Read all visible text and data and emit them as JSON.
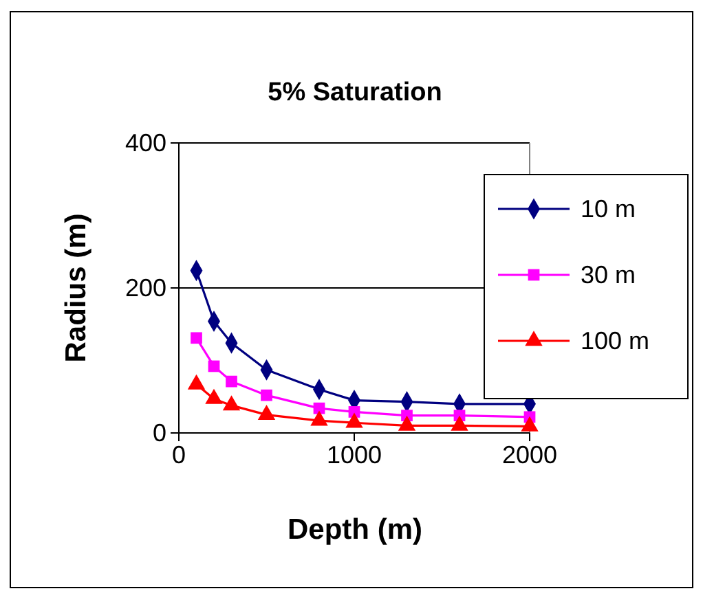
{
  "chart_data": {
    "type": "line",
    "title": "5% Saturation",
    "xlabel": "Depth (m)",
    "ylabel": "Radius (m)",
    "x": [
      100,
      200,
      300,
      500,
      800,
      1000,
      1300,
      1600,
      2000
    ],
    "xlim": [
      0,
      2000
    ],
    "xticks": [
      0,
      1000,
      2000
    ],
    "ylim": [
      0,
      400
    ],
    "yticks": [
      0,
      200,
      400
    ],
    "grid": "y",
    "legend": "right",
    "series": [
      {
        "name": "10 m",
        "color": "#000080",
        "marker": "diamond",
        "values": [
          224,
          154,
          124,
          87,
          60,
          45,
          43,
          40,
          40
        ]
      },
      {
        "name": "30 m",
        "color": "#ff00ff",
        "marker": "square",
        "values": [
          131,
          92,
          71,
          52,
          34,
          29,
          24,
          24,
          22
        ]
      },
      {
        "name": "100 m",
        "color": "#ff0000",
        "marker": "triangle",
        "values": [
          67,
          47,
          38,
          25,
          17,
          14,
          10,
          10,
          9
        ]
      }
    ]
  }
}
